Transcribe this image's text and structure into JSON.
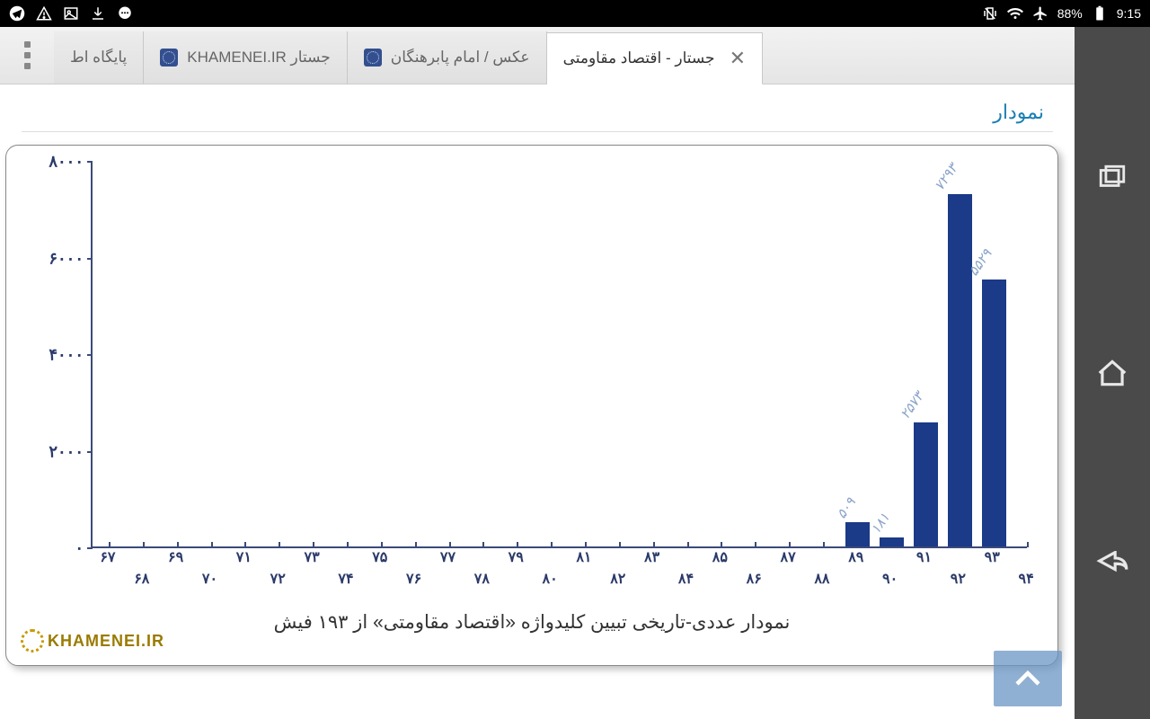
{
  "status": {
    "time": "9:15",
    "battery": "88%",
    "left_icons": [
      "telegram",
      "warning",
      "image",
      "download",
      "chat"
    ],
    "right_icons": [
      "vibrate",
      "wifi",
      "airplane",
      "battery"
    ]
  },
  "browser": {
    "tabs": [
      {
        "label": "پایگاه اط",
        "active": false,
        "favicon": false
      },
      {
        "label": "جستار   KHAMENEI.IR",
        "active": false,
        "favicon": true
      },
      {
        "label": "عکس / امام پابرهنگان",
        "active": false,
        "favicon": true
      },
      {
        "label": "جستار - اقتصاد مقاومتی",
        "active": true,
        "favicon": false,
        "closeable": true
      }
    ]
  },
  "page": {
    "section_title": "نمودار",
    "chart": {
      "type": "bar",
      "axis_color": "#3b4a7a",
      "bar_color": "#1b3a87",
      "value_label_color": "#8aa4c8",
      "ylim": [
        0,
        8000
      ],
      "yticks": [
        0,
        2000,
        4000,
        6000,
        8000
      ],
      "ytick_labels": [
        "۰",
        "۲۰۰۰",
        "۴۰۰۰",
        "۶۰۰۰",
        "۸۰۰۰"
      ],
      "xticks": [
        "۶۷",
        "۶۸",
        "۶۹",
        "۷۰",
        "۷۱",
        "۷۲",
        "۷۳",
        "۷۴",
        "۷۵",
        "۷۶",
        "۷۷",
        "۷۸",
        "۷۹",
        "۸۰",
        "۸۱",
        "۸۲",
        "۸۳",
        "۸۴",
        "۸۵",
        "۸۶",
        "۸۷",
        "۸۸",
        "۸۹",
        "۹۰",
        "۹۱",
        "۹۲",
        "۹۳",
        "۹۴"
      ],
      "bars": [
        {
          "x_index": 22,
          "value": 509,
          "label": "۵۰۹"
        },
        {
          "x_index": 23,
          "value": 181,
          "label": "۱۸۱"
        },
        {
          "x_index": 24,
          "value": 2573,
          "label": "۲۵۷۳"
        },
        {
          "x_index": 25,
          "value": 7293,
          "label": "۷۲۹۳"
        },
        {
          "x_index": 26,
          "value": 5529,
          "label": "۵۵۲۹"
        }
      ],
      "bar_width_ratio": 0.72,
      "caption": "نمودار عددی-تاریخی تبیین کلیدواژه «اقتصاد مقاومتی» از ۱۹۳ فیش",
      "logo_text": "KHAMENEI.IR"
    }
  }
}
